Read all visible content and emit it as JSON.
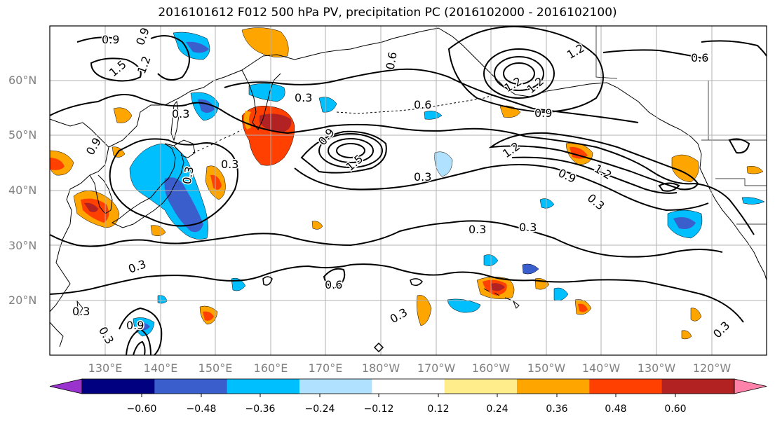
{
  "title": "2016101612 F012 500 hPa PV, precipitation PC (2016102000 - 2016102100)",
  "map": {
    "lat_labels": [
      "60°N",
      "50°N",
      "40°N",
      "30°N",
      "20°N"
    ],
    "lon_labels": [
      "130°E",
      "140°E",
      "150°E",
      "160°E",
      "170°E",
      "180°W",
      "170°W",
      "160°W",
      "150°W",
      "140°W",
      "130°W",
      "120°W"
    ],
    "pv_contour_labels": [
      "0.9",
      "0.9",
      "1.5",
      "1.2",
      "0.3",
      "0.9",
      "0.3",
      "0.6",
      "1.2",
      "1.2",
      "0.6",
      "0.6",
      "0.9",
      "1.5",
      "0.3",
      "0.3",
      "0.3",
      "0.9",
      "1.2",
      "1.2",
      "0.9",
      "0.3",
      "0.3",
      "0.3",
      "0.6",
      "0.3",
      "0.3",
      "0.3",
      "0.9",
      "0.3",
      "1.2",
      "0.3"
    ]
  },
  "colorbar": {
    "ticks": [
      "−0.60",
      "−0.48",
      "−0.36",
      "−0.24",
      "−0.12",
      "0.12",
      "0.24",
      "0.36",
      "0.48",
      "0.60"
    ],
    "colors": [
      "#9a32cd",
      "#000080",
      "#3a5fcd",
      "#00bfff",
      "#b0e2ff",
      "#ffffff",
      "#ffec8b",
      "#ffa500",
      "#ff4000",
      "#b22222",
      "#ff82ab"
    ]
  },
  "colors": {
    "land_outline": "#000000",
    "grid": "#b0b0b0",
    "pv_contour": "#000000"
  }
}
